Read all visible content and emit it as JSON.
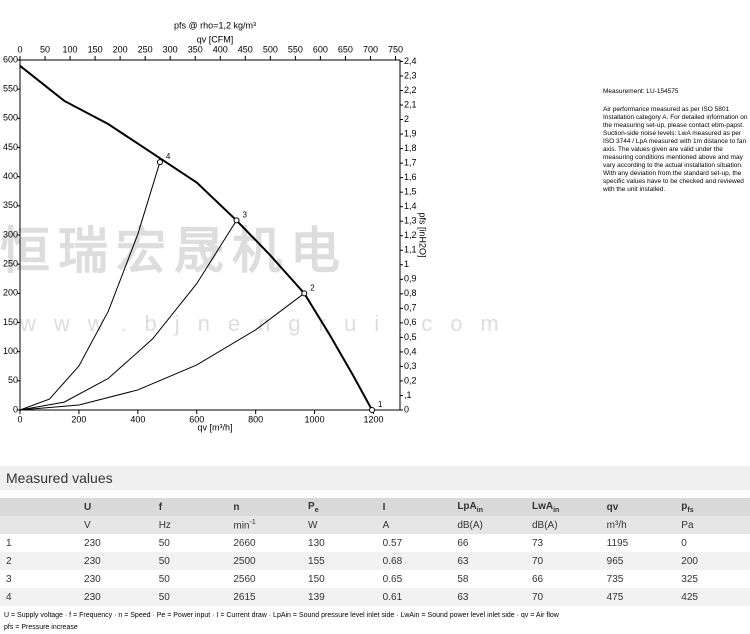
{
  "chart_data": {
    "type": "line",
    "title": "pfs @ rho=1,2 kg/m³",
    "x2_label": "qv [CFM]",
    "xlabel": "qv [m³/h]",
    "y2label": "pfs [inH2O]",
    "xlim": [
      0,
      1290
    ],
    "xticks": [
      0,
      200,
      400,
      600,
      800,
      1000,
      1200
    ],
    "x2lim": [
      0,
      759
    ],
    "x2ticks": [
      0,
      50,
      100,
      150,
      200,
      250,
      300,
      350,
      400,
      450,
      500,
      550,
      600,
      650,
      700,
      750
    ],
    "ylim": [
      0,
      600
    ],
    "yticks": [
      0,
      50,
      100,
      150,
      200,
      250,
      300,
      350,
      400,
      450,
      500,
      550,
      600
    ],
    "y2lim": [
      0,
      2.41
    ],
    "y2ticks": [
      0,
      {
        "value": 0.1,
        "label": ",1"
      },
      {
        "value": 0.2,
        "label": "0,2"
      },
      {
        "value": 0.3,
        "label": "0,3"
      },
      {
        "value": 0.4,
        "label": "0,4"
      },
      {
        "value": 0.5,
        "label": "0,5"
      },
      {
        "value": 0.6,
        "label": "0,6"
      },
      {
        "value": 0.7,
        "label": "0,7"
      },
      {
        "value": 0.8,
        "label": "0,8"
      },
      {
        "value": 0.9,
        "label": "0,9"
      },
      1,
      {
        "value": 1.1,
        "label": "1,1"
      },
      {
        "value": 1.2,
        "label": "1,2"
      },
      {
        "value": 1.3,
        "label": "1,3"
      },
      {
        "value": 1.4,
        "label": "1,4"
      },
      {
        "value": 1.5,
        "label": "1,5"
      },
      {
        "value": 1.6,
        "label": "1,6"
      },
      {
        "value": 1.7,
        "label": "1,7"
      },
      {
        "value": 1.8,
        "label": "1,8"
      },
      {
        "value": 1.9,
        "label": "1,9"
      },
      2,
      {
        "value": 2.1,
        "label": "2,1"
      },
      {
        "value": 2.2,
        "label": "2,2"
      },
      {
        "value": 2.3,
        "label": "2,3"
      },
      {
        "value": 2.4,
        "label": "2,4"
      }
    ],
    "series": [
      {
        "color": "#000000",
        "width": 2,
        "x": [
          0,
          150,
          300,
          480,
          600,
          735,
          850,
          965,
          1050,
          1130,
          1195
        ],
        "values": [
          590,
          530,
          490,
          430,
          390,
          325,
          265,
          200,
          130,
          60,
          0
        ]
      },
      {
        "color": "#000000",
        "width": 1,
        "x": [
          0,
          100,
          200,
          300,
          400,
          475
        ],
        "values": [
          0,
          18.8,
          75.4,
          169.6,
          301.4,
          425
        ]
      },
      {
        "color": "#000000",
        "width": 1,
        "x": [
          0,
          150,
          300,
          450,
          600,
          735
        ],
        "values": [
          0,
          13.5,
          54.2,
          121.9,
          216.7,
          325
        ]
      },
      {
        "color": "#000000",
        "width": 1,
        "x": [
          0,
          200,
          400,
          600,
          800,
          965
        ],
        "values": [
          0,
          8.6,
          34.4,
          77.3,
          137.5,
          200
        ]
      }
    ],
    "points": [
      {
        "label": "1",
        "x": 1195,
        "y": 0
      },
      {
        "label": "2",
        "x": 965,
        "y": 200
      },
      {
        "label": "3",
        "x": 735,
        "y": 325
      },
      {
        "label": "4",
        "x": 475,
        "y": 425
      }
    ],
    "watermark": [
      "恒瑞宏晟机电",
      "www.bjnengrui.com"
    ]
  },
  "notes": {
    "measurement": "Measurement: LU-154575",
    "text": "Air performance measured as per ISO 5801 Installation category A. For detailed information on the measuring set-up, please contact ebm-papst. Suction-side noise levels: LwA measured as per ISO 3744 / LpA measured with 1m distance to fan axis. The values given are valid under the measuring conditions mentioned above and may vary according to the actual installation situation. With any deviation from the standard set-up, the specific values have to be checked and reviewed with the unit installed."
  },
  "table": {
    "title": "Measured values",
    "header": [
      "U",
      "f",
      "n",
      {
        "text": "P",
        "sub": "e"
      },
      "I",
      {
        "text": "LpA",
        "sub": "in"
      },
      {
        "text": "LwA",
        "sub": "in"
      },
      "qv",
      {
        "text": "p",
        "sub": "fs"
      }
    ],
    "units": [
      "V",
      "Hz",
      {
        "text": "min",
        "sup": "-1"
      },
      "W",
      "A",
      "dB(A)",
      "dB(A)",
      "m³/h",
      "Pa"
    ],
    "rows": [
      [
        "1",
        230,
        50,
        2660,
        130,
        0.57,
        66,
        73,
        1195,
        0
      ],
      [
        "2",
        230,
        50,
        2500,
        155,
        0.68,
        63,
        70,
        965,
        200
      ],
      [
        "3",
        230,
        50,
        2560,
        150,
        0.65,
        58,
        66,
        735,
        325
      ],
      [
        "4",
        230,
        50,
        2615,
        139,
        0.61,
        63,
        70,
        475,
        425
      ]
    ],
    "footnotes": [
      "U = Supply voltage · f = Frequency · n = Speed · Pe = Power input · I = Current draw · LpAin = Sound pressure level inlet side · LwAin = Sound power level inlet side · qv = Air flow",
      "pfs = Pressure increase"
    ]
  }
}
